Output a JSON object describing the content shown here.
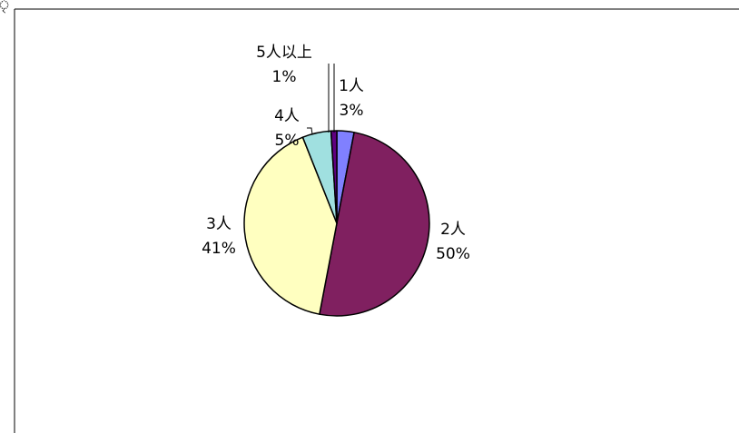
{
  "page": {
    "corner_text": "ৃ"
  },
  "chart_data": {
    "type": "pie",
    "title": "",
    "start_angle_deg": 0,
    "direction": "clockwise",
    "slices": [
      {
        "label": "1人",
        "value": 3,
        "percent_label": "3%",
        "color": "#8080ff"
      },
      {
        "label": "2人",
        "value": 50,
        "percent_label": "50%",
        "color": "#802060"
      },
      {
        "label": "3人",
        "value": 41,
        "percent_label": "41%",
        "color": "#ffffc0"
      },
      {
        "label": "4人",
        "value": 5,
        "percent_label": "5%",
        "color": "#a0e0e0"
      },
      {
        "label": "5人以上",
        "value": 1,
        "percent_label": "1%",
        "color": "#600080"
      }
    ],
    "legend": "none",
    "data_labels": "category-and-percent"
  }
}
